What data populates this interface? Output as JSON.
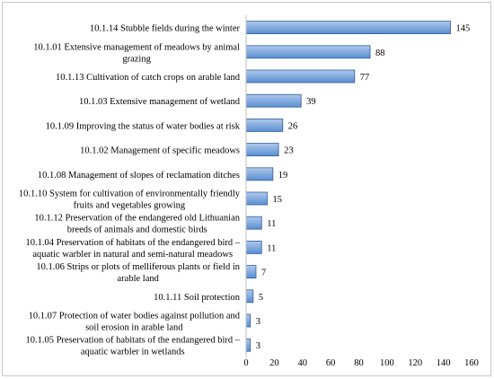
{
  "chart_data": {
    "type": "bar",
    "orientation": "horizontal",
    "categories": [
      [
        "10.1.14 Stubble fields during the winter"
      ],
      [
        "10.1.01 Extensive management of meadows by animal",
        "grazing"
      ],
      [
        "10.1.13 Cultivation of catch crops on arable land"
      ],
      [
        "10.1.03 Extensive management of wetland"
      ],
      [
        "10.1.09 Improving the status of water bodies at risk"
      ],
      [
        "10.1.02 Management of specific meadows"
      ],
      [
        "10.1.08 Management of slopes of reclamation ditches"
      ],
      [
        "10.1.10 System for cultivation of environmentally friendly",
        "fruits and vegetables growing"
      ],
      [
        "10.1.12 Preservation of the endangered old Lithuanian",
        "breeds of animals and domestic birds"
      ],
      [
        "10.1.04 Preservation of habitats of the endangered bird –",
        "aquatic warbler in natural and semi-natural meadows"
      ],
      [
        "10.1.06 Strips or plots of melliferous plants or field in",
        "arable land"
      ],
      [
        "10.1.11 Soil protection"
      ],
      [
        "10.1.07 Protection of water bodies against pollution and",
        "soil erosion in arable land"
      ],
      [
        "10.1.05 Preservation of habitats of the endangered bird –",
        "aquatic warbler in wetlands"
      ]
    ],
    "values": [
      145,
      88,
      77,
      39,
      26,
      23,
      19,
      15,
      11,
      11,
      7,
      5,
      3,
      3
    ],
    "value_labels": [
      "145",
      "88",
      "77",
      "39",
      "26",
      "23",
      "19",
      "15",
      "11",
      "11",
      "7",
      "5",
      "3",
      "3"
    ],
    "xlim": [
      0,
      160
    ],
    "xticks": [
      0,
      20,
      40,
      60,
      80,
      100,
      120,
      140,
      160
    ],
    "title": "",
    "xlabel": "",
    "ylabel": "",
    "grid": false,
    "legend": "none",
    "colors": {
      "bar_fill_top": "#aec8ec",
      "bar_fill_bottom": "#5b8fd0",
      "bar_stroke": "#2f5d9c",
      "axis": "#bfbfbf"
    }
  }
}
